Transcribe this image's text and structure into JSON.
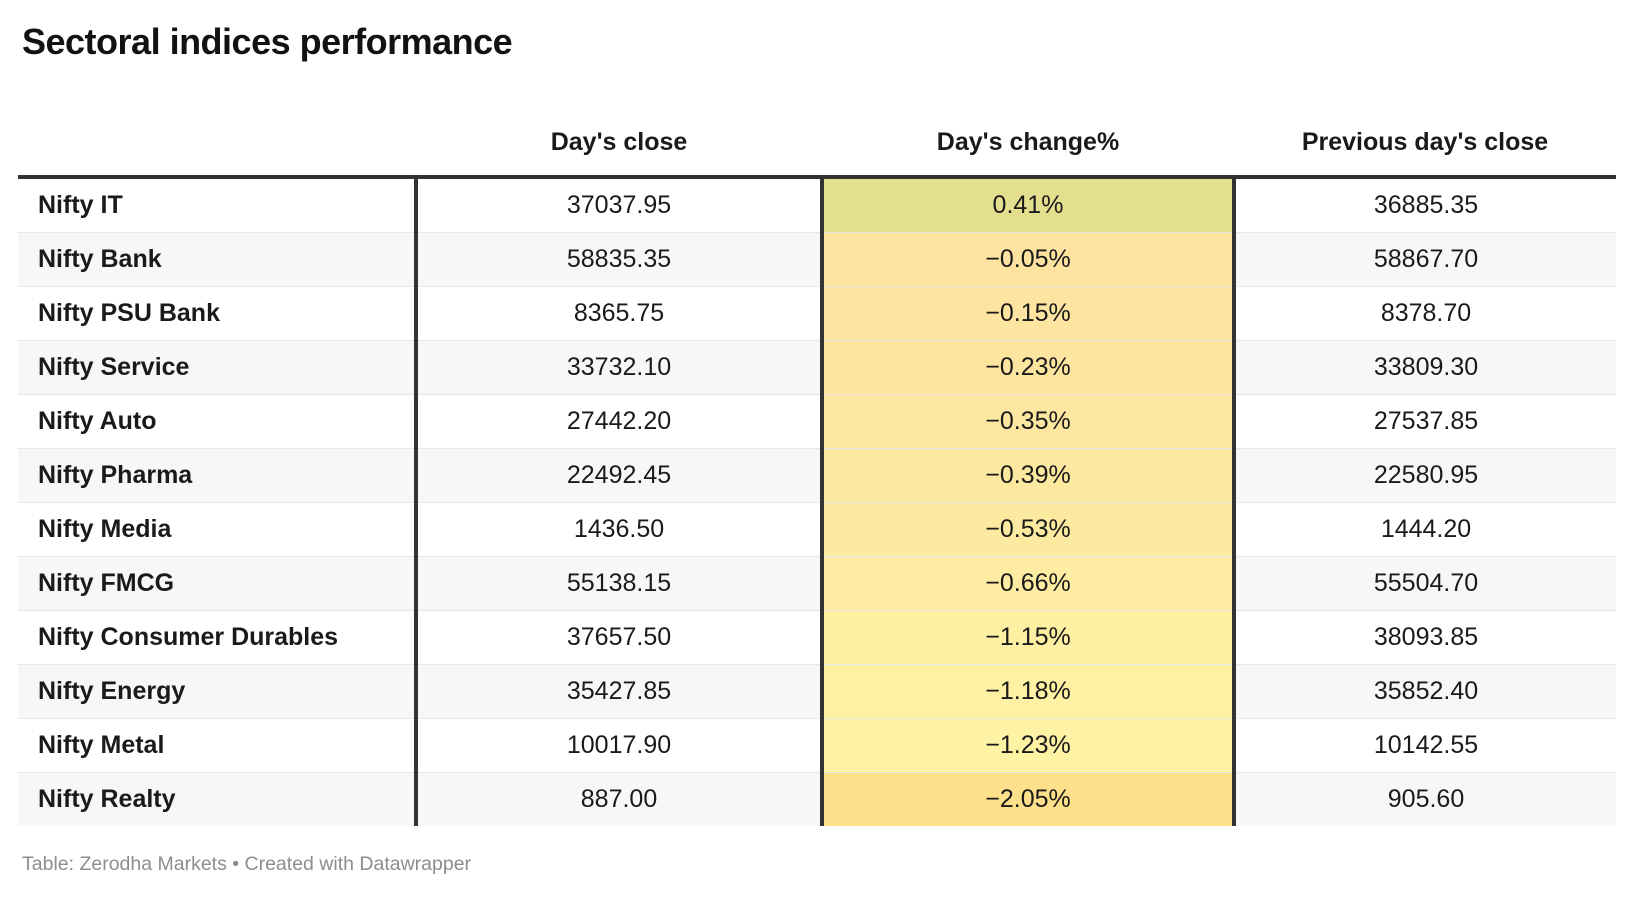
{
  "title": "Sectoral indices performance",
  "footer": {
    "text": "Table: Zerodha Markets • Created with Datawrapper"
  },
  "colors": {
    "header_border": "#333333",
    "column_divider": "#333333",
    "row_divider": "#e7e7e7",
    "zebra_stripe": "#f7f7f7",
    "text": "#1a1a1a",
    "footer_text": "#8d8d8d"
  },
  "chart_data": {
    "type": "table",
    "title": "Sectoral indices performance",
    "source": "Zerodha Markets",
    "tool": "Datawrapper",
    "heatmap_column": "Day's change%",
    "columns": [
      "",
      "Day's close",
      "Day's change%",
      "Previous day's close"
    ],
    "rows": [
      {
        "label": "Nifty IT",
        "close": "37037.95",
        "change": "0.41%",
        "prev": "36885.35",
        "change_bg": "#e4df8e"
      },
      {
        "label": "Nifty Bank",
        "close": "58835.35",
        "change": "−0.05%",
        "prev": "58867.70",
        "change_bg": "#fde2a0"
      },
      {
        "label": "Nifty PSU Bank",
        "close": "8365.75",
        "change": "−0.15%",
        "prev": "8378.70",
        "change_bg": "#fde4a0"
      },
      {
        "label": "Nifty Service",
        "close": "33732.10",
        "change": "−0.23%",
        "prev": "33809.30",
        "change_bg": "#fde5a0"
      },
      {
        "label": "Nifty Auto",
        "close": "27442.20",
        "change": "−0.35%",
        "prev": "27537.85",
        "change_bg": "#fde7a0"
      },
      {
        "label": "Nifty Pharma",
        "close": "22492.45",
        "change": "−0.39%",
        "prev": "22580.95",
        "change_bg": "#fde8a0"
      },
      {
        "label": "Nifty Media",
        "close": "1436.50",
        "change": "−0.53%",
        "prev": "1444.20",
        "change_bg": "#fdeaa1"
      },
      {
        "label": "Nifty FMCG",
        "close": "55138.15",
        "change": "−0.66%",
        "prev": "55504.70",
        "change_bg": "#fdeca2"
      },
      {
        "label": "Nifty Consumer Durables",
        "close": "37657.50",
        "change": "−1.15%",
        "prev": "38093.85",
        "change_bg": "#fef0a3"
      },
      {
        "label": "Nifty Energy",
        "close": "35427.85",
        "change": "−1.18%",
        "prev": "35852.40",
        "change_bg": "#fef1a4"
      },
      {
        "label": "Nifty Metal",
        "close": "10017.90",
        "change": "−1.23%",
        "prev": "10142.55",
        "change_bg": "#fef2a5"
      },
      {
        "label": "Nifty Realty",
        "close": "887.00",
        "change": "−2.05%",
        "prev": "905.60",
        "change_bg": "#fee08a"
      }
    ]
  }
}
